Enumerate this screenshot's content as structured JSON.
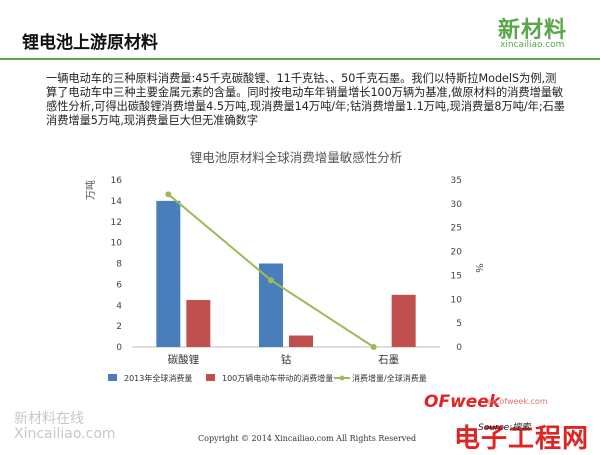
{
  "header": {
    "title": "锂电池上游原材料",
    "logo_text": "新材料",
    "logo_url": "xincailiao.com"
  },
  "description": "一辆电动车的三种原料消费量:45千克碳酸锂、11千克钴、、50千克石墨。我们以特斯拉ModelS为例,测算了电动车中三种主要金属元素的含量。同时按电动车年销量增长100万辆为基准,做原材料的消费增量敏感性分析,可得出碳酸锂消费增量4.5万吨,现消费量14万吨/年;钴消费增量1.1万吨,现消费量8万吨/年;石墨消费增量5万吨,现消费量巨大但无准确数字",
  "chart_data": {
    "type": "bar",
    "title": "锂电池原材料全球消费增量敏感性分析",
    "categories": [
      "碳酸锂",
      "钴",
      "石墨"
    ],
    "ylabel_left": "万吨",
    "ylabel_right": "%",
    "ylim_left": [
      0,
      16
    ],
    "yticks_left": [
      0,
      2,
      4,
      6,
      8,
      10,
      12,
      14,
      16
    ],
    "ylim_right": [
      0,
      35
    ],
    "yticks_right": [
      0,
      5,
      10,
      15,
      20,
      25,
      30,
      35
    ],
    "series": [
      {
        "name": "2013年全球消费量",
        "type": "bar",
        "axis": "left",
        "color": "#4a7ebb",
        "values": [
          14,
          8,
          null
        ]
      },
      {
        "name": "100万辆电动车带动的消费增量",
        "type": "bar",
        "axis": "left",
        "color": "#c0504d",
        "values": [
          4.5,
          1.1,
          5
        ]
      },
      {
        "name": "消费增量/全球消费量",
        "type": "line",
        "axis": "right",
        "color": "#9bbb59",
        "values": [
          32,
          14,
          0
        ]
      }
    ],
    "grid": false,
    "legend_position": "bottom"
  },
  "footer": {
    "watermark_line1": "新材料在线",
    "watermark_line2": "Xincailiao.com",
    "copyright": "Copyright © 2014   Xincailiao.com   All Rights Reserved",
    "ofweek": "OFweek",
    "ofweek_url": "ee.ofweek.com",
    "ee_site": "电子工程网",
    "source": "Source:搜索"
  }
}
